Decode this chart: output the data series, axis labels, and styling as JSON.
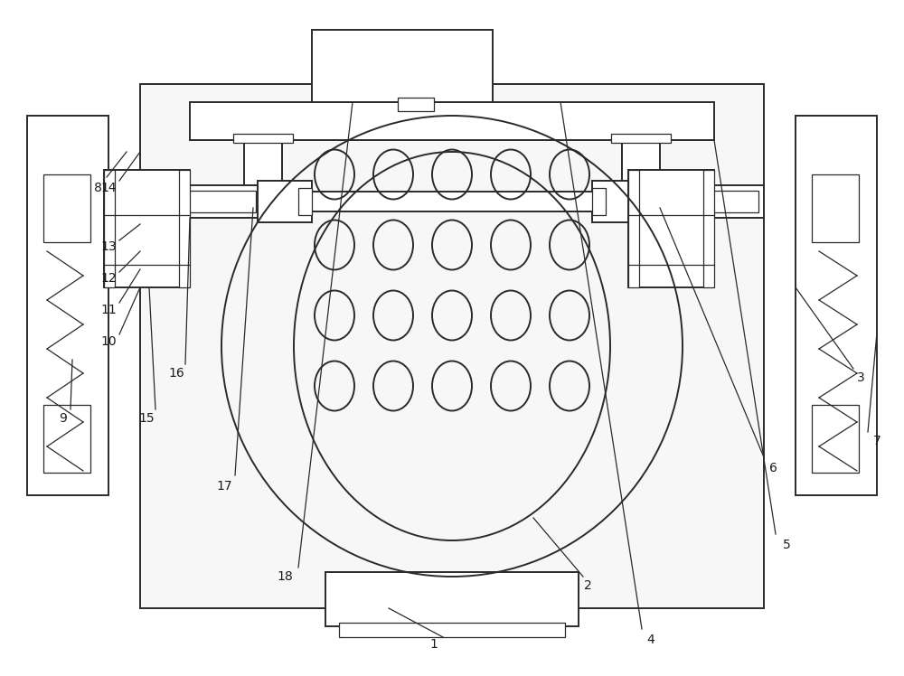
{
  "bg": "white",
  "lc": "#2a2a2a",
  "lw": 1.4,
  "lw2": 0.9,
  "fs": 10,
  "fig_w": 10.0,
  "fig_h": 7.48,
  "dpi": 100
}
